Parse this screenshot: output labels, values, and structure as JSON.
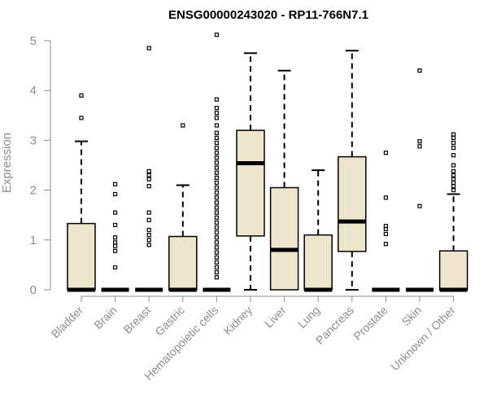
{
  "chart_data": {
    "type": "box",
    "title": "ENSG00000243020 - RP11-766N7.1",
    "ylabel": "Expression",
    "xlabel": "",
    "ylim": [
      0,
      5
    ],
    "yticks": [
      "0",
      "1",
      "2",
      "3",
      "4",
      "5"
    ],
    "categories": [
      "Bladder",
      "Brain",
      "Breast",
      "Gastric",
      "Hematopoietic cells",
      "Kidney",
      "Liver",
      "Lung",
      "Pancreas",
      "Prostate",
      "Skin",
      "Unknown / Other"
    ],
    "box_fill": "#ede6cd",
    "boxes": [
      {
        "q1": 0,
        "median": 0,
        "q3": 1.33,
        "whisker_low": 0,
        "whisker_high": 2.98,
        "outliers": [
          3.45,
          3.9
        ]
      },
      {
        "q1": 0,
        "median": 0,
        "q3": 0,
        "whisker_low": 0,
        "whisker_high": 0,
        "outliers": [
          0.45,
          0.78,
          0.88,
          0.95,
          1.05,
          1.3,
          1.55,
          1.92,
          2.12
        ]
      },
      {
        "q1": 0,
        "median": 0,
        "q3": 0,
        "whisker_low": 0,
        "whisker_high": 0,
        "outliers": [
          0.9,
          1.0,
          1.1,
          1.2,
          1.4,
          1.55,
          2.08,
          2.22,
          2.3,
          2.38,
          4.85
        ]
      },
      {
        "q1": 0,
        "median": 0,
        "q3": 1.07,
        "whisker_low": 0,
        "whisker_high": 2.1,
        "outliers": [
          3.3
        ]
      },
      {
        "q1": 0,
        "median": 0,
        "q3": 0,
        "whisker_low": 0,
        "whisker_high": 0,
        "outliers": [
          0.25,
          0.35,
          0.45,
          0.55,
          0.65,
          0.75,
          0.85,
          0.95,
          1.05,
          1.15,
          1.25,
          1.35,
          1.45,
          1.55,
          1.65,
          1.75,
          1.85,
          1.95,
          2.05,
          2.15,
          2.25,
          2.35,
          2.45,
          2.55,
          2.65,
          2.75,
          2.85,
          2.95,
          3.05,
          3.15,
          3.3,
          3.45,
          3.55,
          3.65,
          3.82,
          5.12
        ]
      },
      {
        "q1": 1.08,
        "median": 2.54,
        "q3": 3.2,
        "whisker_low": 0,
        "whisker_high": 4.75,
        "outliers": []
      },
      {
        "q1": 0,
        "median": 0.8,
        "q3": 2.05,
        "whisker_low": 0,
        "whisker_high": 4.4,
        "outliers": []
      },
      {
        "q1": 0,
        "median": 0,
        "q3": 1.1,
        "whisker_low": 0,
        "whisker_high": 2.4,
        "outliers": []
      },
      {
        "q1": 0.77,
        "median": 1.37,
        "q3": 2.67,
        "whisker_low": 0,
        "whisker_high": 4.8,
        "outliers": []
      },
      {
        "q1": 0,
        "median": 0,
        "q3": 0,
        "whisker_low": 0,
        "whisker_high": 0,
        "outliers": [
          0.92,
          1.12,
          1.22,
          1.28,
          1.85,
          2.75
        ]
      },
      {
        "q1": 0,
        "median": 0,
        "q3": 0,
        "whisker_low": 0,
        "whisker_high": 0,
        "outliers": [
          1.68,
          2.88,
          2.98,
          4.4
        ]
      },
      {
        "q1": 0,
        "median": 0,
        "q3": 0.78,
        "whisker_low": 0,
        "whisker_high": 1.92,
        "outliers": [
          2.0,
          2.08,
          2.15,
          2.22,
          2.3,
          2.38,
          2.5,
          2.7,
          2.85,
          2.95,
          3.05,
          3.12
        ]
      }
    ]
  }
}
